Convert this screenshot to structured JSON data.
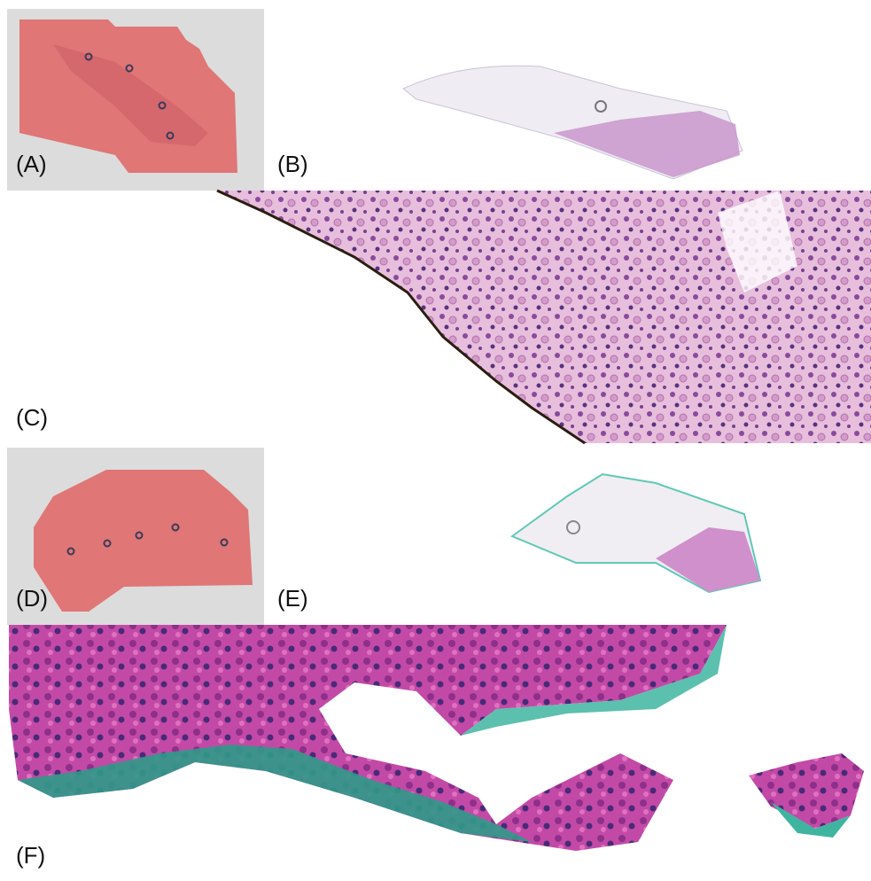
{
  "panels": [
    {
      "label": "(A)"
    },
    {
      "label": "(B)"
    },
    {
      "label": "(C)"
    },
    {
      "label": "(D)"
    },
    {
      "label": "(E)"
    },
    {
      "label": "(F)"
    }
  ]
}
